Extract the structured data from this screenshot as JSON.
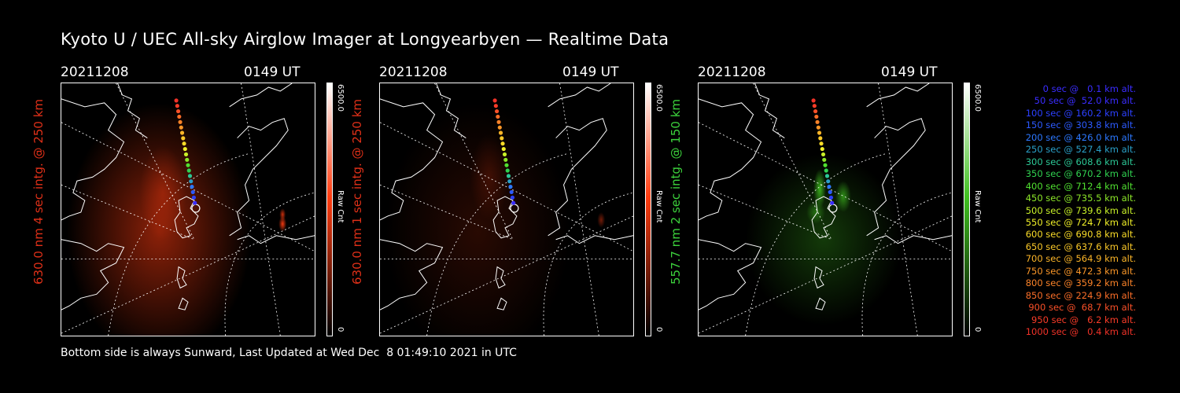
{
  "title": "Kyoto U / UEC All-sky Airglow Imager at Longyearbyen — Realtime Data",
  "panels": [
    {
      "date": "20211208",
      "time": "0149 UT",
      "label": "630.0 nm 4 sec intg. @ 250 km",
      "label_color": "#e03018",
      "cbar_max": "6500.0",
      "cbar_unit": "Raw Cnt",
      "cbar_min": "0",
      "color": "#ff3c10",
      "intensity": "strong"
    },
    {
      "date": "20211208",
      "time": "0149 UT",
      "label": "630.0 nm 1 sec intg. @ 250 km",
      "label_color": "#e03018",
      "cbar_max": "6500.0",
      "cbar_unit": "Raw Cnt",
      "cbar_min": "0",
      "color": "#ff3c10",
      "intensity": "weak"
    },
    {
      "date": "20211208",
      "time": "0149 UT",
      "label": "557.7 nm 2 sec intg. @ 150 km",
      "label_color": "#3cd23c",
      "cbar_max": "6500.0",
      "cbar_unit": "Raw Cnt",
      "cbar_min": "0",
      "color": "#40c020",
      "intensity": "medium"
    }
  ],
  "legend": [
    {
      "text": "0 sec @   0.1 km alt.",
      "color": "#3a2cff"
    },
    {
      "text": "50 sec @  52.0 km alt.",
      "color": "#3a2cff"
    },
    {
      "text": "100 sec @ 160.2 km alt.",
      "color": "#2c40ff"
    },
    {
      "text": "150 sec @ 303.8 km alt.",
      "color": "#2c5aff"
    },
    {
      "text": "200 sec @ 426.0 km alt.",
      "color": "#2c78ff"
    },
    {
      "text": "250 sec @ 527.4 km alt.",
      "color": "#2aa0c8"
    },
    {
      "text": "300 sec @ 608.6 km alt.",
      "color": "#2cc896"
    },
    {
      "text": "350 sec @ 670.2 km alt.",
      "color": "#30d250"
    },
    {
      "text": "400 sec @ 712.4 km alt.",
      "color": "#50e030"
    },
    {
      "text": "450 sec @ 735.5 km alt.",
      "color": "#8ce628"
    },
    {
      "text": "500 sec @ 739.6 km alt.",
      "color": "#c8f028"
    },
    {
      "text": "550 sec @ 724.7 km alt.",
      "color": "#f0f028"
    },
    {
      "text": "600 sec @ 690.8 km alt.",
      "color": "#fadc28"
    },
    {
      "text": "650 sec @ 637.6 km alt.",
      "color": "#fac828"
    },
    {
      "text": "700 sec @ 564.9 km alt.",
      "color": "#fab428"
    },
    {
      "text": "750 sec @ 472.3 km alt.",
      "color": "#fa9628"
    },
    {
      "text": "800 sec @ 359.2 km alt.",
      "color": "#fa8228"
    },
    {
      "text": "850 sec @ 224.9 km alt.",
      "color": "#fa6e28"
    },
    {
      "text": "900 sec @  68.7 km alt.",
      "color": "#fa5028"
    },
    {
      "text": "950 sec @   6.2 km alt.",
      "color": "#fa3c28"
    },
    {
      "text": "1000 sec @   0.4 km alt.",
      "color": "#f03228"
    }
  ],
  "footer": "Bottom side is always Sunward, Last Updated at Wed Dec  8 01:49:10 2021 in UTC"
}
